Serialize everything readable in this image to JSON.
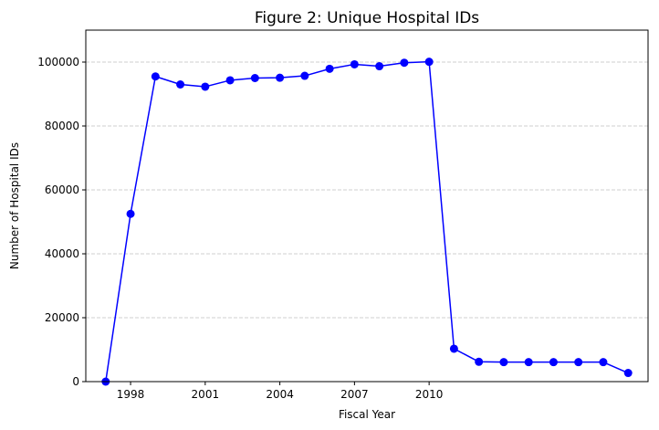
{
  "chart_data": {
    "type": "line",
    "title": "Figure 2: Unique Hospital IDs",
    "xlabel": "Fiscal Year",
    "ylabel": "Number of Hospital IDs",
    "x": [
      1997,
      1998,
      1999,
      2000,
      2001,
      2002,
      2003,
      2004,
      2005,
      2006,
      2007,
      2008,
      2009,
      2010,
      2011,
      2012,
      2013,
      2014,
      2015,
      2016,
      2017,
      2018
    ],
    "series": [
      {
        "values": [
          0,
          52500,
          95500,
          93000,
          92300,
          94300,
          95000,
          95100,
          95700,
          97900,
          99300,
          98700,
          99800,
          100100,
          10300,
          6200,
          6100,
          6100,
          6100,
          6100,
          6100,
          2700
        ],
        "color": "#0000ff",
        "marker": "circle"
      }
    ],
    "xlim": [
      1996.2,
      2018.8
    ],
    "ylim": [
      0,
      110000
    ],
    "x_ticks": [
      1998,
      2001,
      2004,
      2007,
      2010
    ],
    "x_tick_labels": [
      "1998",
      "2001",
      "2004",
      "2007",
      "2010"
    ],
    "y_ticks": [
      0,
      20000,
      40000,
      60000,
      80000,
      100000
    ],
    "y_tick_labels": [
      "0",
      "20000",
      "40000",
      "60000",
      "80000",
      "100000"
    ],
    "grid": "horizontal-dashed",
    "grid_color": "#c0c0c0",
    "axis_color": "#000000"
  }
}
